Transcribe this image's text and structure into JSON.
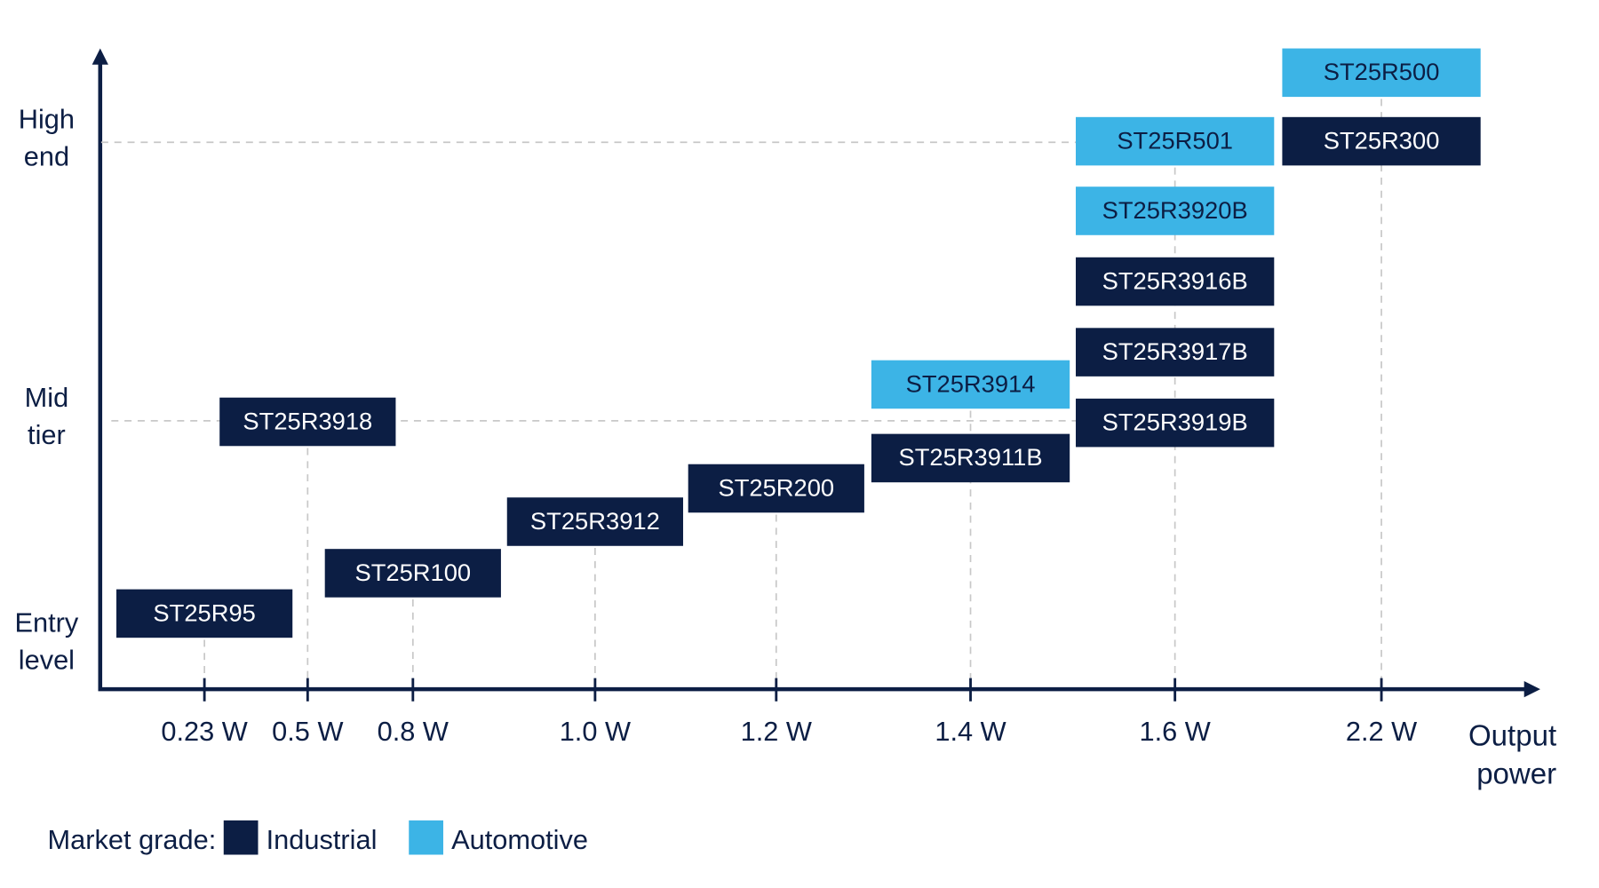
{
  "y_axis": {
    "labels": [
      [
        "High",
        "end"
      ],
      [
        "Mid",
        "tier"
      ],
      [
        "Entry",
        "level"
      ]
    ]
  },
  "x_axis": {
    "labels": [
      "0.23 W",
      "0.5 W",
      "0.8 W",
      "1.0 W",
      "1.2 W",
      "1.4 W",
      "1.6 W",
      "2.2 W"
    ],
    "title": [
      "Output",
      "power"
    ]
  },
  "legend": {
    "title": "Market grade:",
    "items": [
      {
        "name": "Industrial",
        "color": "#0c1e44"
      },
      {
        "name": "Automotive",
        "color": "#3cb4e6"
      }
    ]
  },
  "products": [
    {
      "name": "ST25R95",
      "power": "0.23 W",
      "grade": "Industrial"
    },
    {
      "name": "ST25R3918",
      "power": "0.5 W",
      "grade": "Industrial"
    },
    {
      "name": "ST25R100",
      "power": "0.8 W",
      "grade": "Industrial"
    },
    {
      "name": "ST25R3912",
      "power": "1.0 W",
      "grade": "Industrial"
    },
    {
      "name": "ST25R200",
      "power": "1.2 W",
      "grade": "Industrial"
    },
    {
      "name": "ST25R3911B",
      "power": "1.4 W",
      "grade": "Industrial"
    },
    {
      "name": "ST25R3914",
      "power": "1.4 W",
      "grade": "Automotive"
    },
    {
      "name": "ST25R3919B",
      "power": "1.6 W",
      "grade": "Industrial"
    },
    {
      "name": "ST25R3917B",
      "power": "1.6 W",
      "grade": "Industrial"
    },
    {
      "name": "ST25R3916B",
      "power": "1.6 W",
      "grade": "Industrial"
    },
    {
      "name": "ST25R3920B",
      "power": "1.6 W",
      "grade": "Automotive"
    },
    {
      "name": "ST25R501",
      "power": "1.6 W",
      "grade": "Automotive"
    },
    {
      "name": "ST25R300",
      "power": "2.2 W",
      "grade": "Industrial"
    },
    {
      "name": "ST25R500",
      "power": "2.2 W",
      "grade": "Automotive"
    }
  ]
}
